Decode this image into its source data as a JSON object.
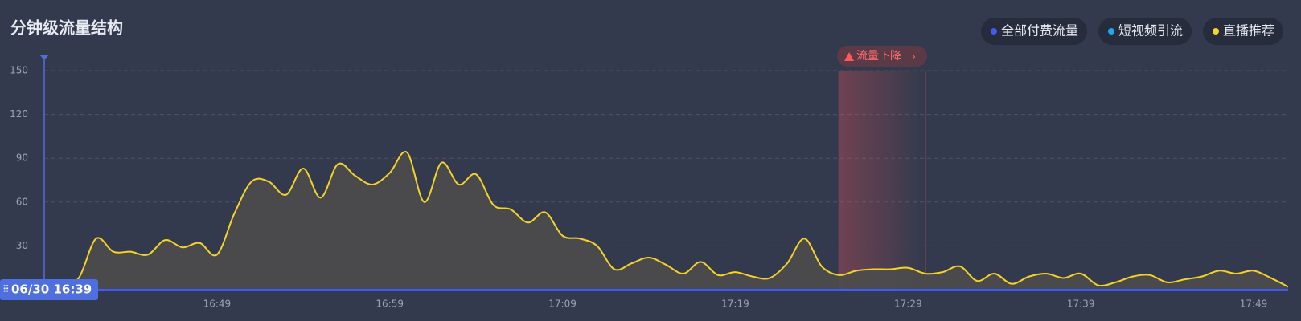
{
  "chart_data": {
    "type": "line",
    "title": "分钟级流量结构",
    "cursor_label": "06/30 16:39",
    "categories": [
      "16:39",
      null,
      null,
      null,
      null,
      null,
      null,
      null,
      null,
      null,
      "16:49",
      null,
      null,
      null,
      null,
      null,
      null,
      null,
      null,
      null,
      "16:59",
      null,
      null,
      null,
      null,
      null,
      null,
      null,
      null,
      null,
      "17:09",
      null,
      null,
      null,
      null,
      null,
      null,
      null,
      null,
      null,
      "17:19",
      null,
      null,
      null,
      null,
      null,
      null,
      null,
      null,
      null,
      "17:29",
      null,
      null,
      null,
      null,
      null,
      null,
      null,
      null,
      null,
      "17:39",
      null,
      null,
      null,
      null,
      null,
      null,
      null,
      null,
      null,
      "17:49",
      null,
      null
    ],
    "series": [
      {
        "name": "全部付费流量",
        "color": "#3d5cf5",
        "values": [
          0,
          0,
          0,
          0,
          0,
          0,
          0,
          0,
          0,
          0,
          0,
          0,
          0,
          0,
          0,
          0,
          0,
          0,
          0,
          0,
          0,
          0,
          0,
          0,
          0,
          0,
          0,
          0,
          0,
          0,
          0,
          0,
          0,
          0,
          0,
          0,
          0,
          0,
          0,
          0,
          0,
          0,
          0,
          0,
          0,
          0,
          0,
          0,
          0,
          0,
          0,
          0,
          0,
          0,
          0,
          0,
          0,
          0,
          0,
          0,
          0,
          0,
          0,
          0,
          0,
          0,
          0,
          0,
          0,
          0,
          0,
          0,
          0
        ]
      },
      {
        "name": "短视频引流",
        "color": "#1fa7f0",
        "values": [
          0,
          0,
          0,
          0,
          0,
          0,
          0,
          0,
          0,
          0,
          0,
          0,
          0,
          0,
          0,
          0,
          0,
          0,
          0,
          0,
          0,
          0,
          0,
          0,
          0,
          0,
          0,
          0,
          0,
          0,
          0,
          0,
          0,
          0,
          0,
          0,
          0,
          0,
          0,
          0,
          0,
          0,
          0,
          0,
          0,
          0,
          0,
          0,
          0,
          0,
          0,
          0,
          0,
          0,
          0,
          0,
          0,
          0,
          0,
          0,
          0,
          0,
          0,
          0,
          0,
          0,
          0,
          0,
          0,
          0,
          0,
          0,
          0
        ]
      },
      {
        "name": "直播推荐",
        "color": "#f5d329",
        "area": true,
        "values": [
          0,
          3,
          8,
          35,
          26,
          26,
          24,
          34,
          29,
          32,
          24,
          52,
          74,
          74,
          65,
          83,
          63,
          86,
          78,
          72,
          80,
          94,
          60,
          87,
          72,
          79,
          58,
          55,
          46,
          53,
          37,
          35,
          30,
          14,
          18,
          22,
          17,
          11,
          19,
          10,
          12,
          9,
          8,
          18,
          35,
          16,
          10,
          13,
          14,
          14,
          15,
          11,
          12,
          16,
          6,
          11,
          4,
          9,
          11,
          8,
          11,
          3,
          5,
          9,
          10,
          5,
          7,
          9,
          13,
          11,
          13,
          8,
          2
        ]
      }
    ],
    "highlight": {
      "label": "流量下降",
      "from": 46,
      "to": 51
    },
    "ylim": [
      0,
      150
    ],
    "yticks": [
      0,
      30,
      60,
      90,
      120,
      150
    ],
    "grid": true,
    "legend": "top-right"
  }
}
